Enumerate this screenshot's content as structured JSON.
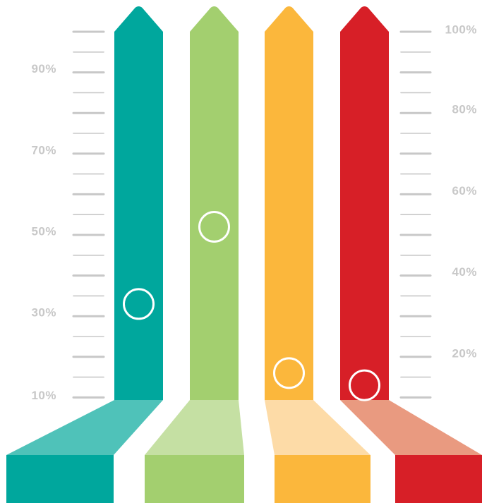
{
  "chart_data": {
    "type": "bar",
    "title": "",
    "xlabel": "",
    "ylabel": "",
    "left_axis": {
      "tick_labels": [
        "90%",
        "70%",
        "50%",
        "30%",
        "10%"
      ],
      "tick_values": [
        90,
        70,
        50,
        30,
        10
      ]
    },
    "right_axis": {
      "tick_labels": [
        "100%",
        "80%",
        "60%",
        "40%",
        "20%"
      ],
      "tick_values": [
        100,
        80,
        60,
        40,
        20
      ]
    },
    "ylim": [
      10,
      100
    ],
    "grid": false,
    "series": [
      {
        "color": "#00a79d",
        "base_color": "#4fc2b9",
        "value": 33
      },
      {
        "color": "#a3cf6f",
        "base_color": "#c5e0a3",
        "value": 52
      },
      {
        "color": "#fbb73c",
        "base_color": "#fddba7",
        "value": 16
      },
      {
        "color": "#d71f27",
        "base_color": "#e99a80",
        "value": 13
      }
    ],
    "axis_color": "#c8c8c8",
    "marker_color": "#ffffff"
  }
}
